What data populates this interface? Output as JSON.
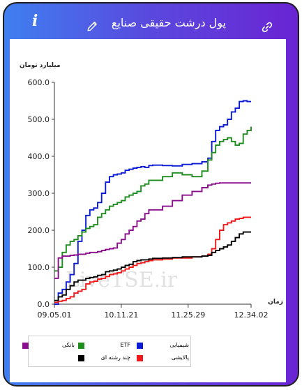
{
  "header": {
    "title": "پول درشت حقیقی صنایع",
    "info_glyph": "i",
    "icons": [
      "info-icon",
      "pencil-icon",
      "link-icon"
    ]
  },
  "colors": {
    "gradient_left": "#3f7ff0",
    "gradient_right": "#6a24d3"
  },
  "watermark": "LiveTSE.ir",
  "chart_data": {
    "type": "line",
    "title": "",
    "ylabel": "میلیارد تومان",
    "xlabel": "زمان",
    "ylim": [
      0,
      600
    ],
    "xlim": [
      0,
      100
    ],
    "y_ticks": [
      "600.0",
      "500.0",
      "400.0",
      "300.0",
      "200.0",
      "100.0",
      "0.0"
    ],
    "y_tick_values": [
      600,
      500,
      400,
      300,
      200,
      100,
      0
    ],
    "x_ticks": [
      {
        "label": "09.05.01",
        "x": 0
      },
      {
        "label": "10.11.21",
        "x": 34
      },
      {
        "label": "11.25.29",
        "x": 68
      },
      {
        "label": "12.34.02",
        "x": 100
      }
    ],
    "grid": false,
    "legend_position": "bottom-left",
    "series": [
      {
        "name": "شیمیایی",
        "color": "#0a1ad6",
        "x": [
          0,
          2,
          4,
          6,
          8,
          10,
          12,
          14,
          16,
          18,
          20,
          22,
          24,
          26,
          28,
          30,
          32,
          34,
          36,
          38,
          40,
          42,
          44,
          46,
          48,
          50,
          55,
          60,
          65,
          70,
          75,
          78,
          80,
          82,
          84,
          86,
          88,
          90,
          92,
          94,
          96,
          98,
          100
        ],
        "y": [
          0,
          30,
          40,
          60,
          80,
          110,
          170,
          200,
          240,
          255,
          260,
          275,
          300,
          330,
          345,
          350,
          352,
          355,
          362,
          365,
          368,
          370,
          372,
          370,
          375,
          376,
          375,
          374,
          378,
          380,
          385,
          395,
          440,
          470,
          480,
          485,
          500,
          520,
          530,
          548,
          550,
          548,
          548
        ]
      },
      {
        "name": "ETF",
        "color": "#1e8c1e",
        "x": [
          0,
          2,
          4,
          6,
          8,
          10,
          12,
          14,
          16,
          18,
          20,
          22,
          24,
          26,
          28,
          30,
          32,
          34,
          36,
          38,
          40,
          42,
          44,
          46,
          48,
          50,
          55,
          60,
          65,
          70,
          75,
          78,
          80,
          82,
          84,
          86,
          88,
          90,
          92,
          94,
          96,
          98,
          100
        ],
        "y": [
          90,
          100,
          140,
          160,
          170,
          175,
          185,
          195,
          205,
          210,
          215,
          235,
          245,
          255,
          265,
          270,
          275,
          280,
          290,
          295,
          300,
          305,
          320,
          325,
          335,
          335,
          345,
          355,
          350,
          345,
          360,
          390,
          410,
          430,
          440,
          445,
          450,
          440,
          430,
          435,
          460,
          470,
          480
        ]
      },
      {
        "name": "بانکی",
        "color": "#8a0d8c",
        "x": [
          0,
          2,
          4,
          6,
          8,
          10,
          12,
          14,
          16,
          18,
          20,
          22,
          24,
          26,
          28,
          30,
          32,
          34,
          36,
          38,
          40,
          42,
          44,
          46,
          48,
          50,
          55,
          60,
          65,
          70,
          75,
          78,
          80,
          82,
          84,
          86,
          88,
          90,
          92,
          94,
          96,
          98,
          100
        ],
        "y": [
          70,
          125,
          130,
          130,
          132,
          133,
          135,
          135,
          138,
          140,
          140,
          142,
          145,
          148,
          150,
          152,
          165,
          175,
          190,
          200,
          210,
          225,
          230,
          245,
          255,
          255,
          265,
          280,
          295,
          305,
          315,
          322,
          325,
          327,
          328,
          328,
          328,
          328,
          328,
          328,
          328,
          328,
          328
        ]
      },
      {
        "name": "پالایشی",
        "color": "#f01818",
        "x": [
          0,
          2,
          4,
          6,
          8,
          10,
          12,
          14,
          16,
          18,
          20,
          22,
          24,
          26,
          28,
          30,
          32,
          34,
          36,
          38,
          40,
          42,
          44,
          46,
          48,
          50,
          55,
          60,
          65,
          70,
          75,
          78,
          80,
          82,
          84,
          86,
          88,
          90,
          92,
          94,
          96,
          98,
          100
        ],
        "y": [
          5,
          8,
          10,
          15,
          20,
          30,
          35,
          40,
          55,
          60,
          62,
          68,
          70,
          75,
          80,
          82,
          85,
          90,
          95,
          100,
          105,
          110,
          112,
          115,
          118,
          120,
          122,
          125,
          125,
          128,
          130,
          135,
          150,
          175,
          200,
          215,
          220,
          225,
          230,
          232,
          235,
          235,
          235
        ]
      },
      {
        "name": "چند رشته ای",
        "color": "#000000",
        "x": [
          0,
          2,
          4,
          6,
          8,
          10,
          12,
          14,
          16,
          18,
          20,
          22,
          24,
          26,
          28,
          30,
          32,
          34,
          36,
          38,
          40,
          42,
          44,
          46,
          48,
          50,
          55,
          60,
          65,
          70,
          75,
          78,
          80,
          82,
          84,
          86,
          88,
          90,
          92,
          94,
          96,
          98,
          100
        ],
        "y": [
          10,
          20,
          25,
          40,
          50,
          60,
          65,
          65,
          70,
          72,
          74,
          78,
          80,
          88,
          90,
          92,
          95,
          100,
          105,
          108,
          115,
          118,
          120,
          120,
          122,
          124,
          125,
          126,
          128,
          128,
          130,
          132,
          140,
          145,
          150,
          155,
          160,
          170,
          180,
          190,
          195,
          195,
          195
        ]
      }
    ],
    "legend": [
      {
        "label": "شیمیایی",
        "color": "#0a1ad6"
      },
      {
        "label": "ETF",
        "color": "#1e8c1e"
      },
      {
        "label": "بانکی",
        "color": "#8a0d8c"
      },
      {
        "label": "پالایشی",
        "color": "#f01818"
      },
      {
        "label": "چند رشته ای",
        "color": "#000000"
      }
    ]
  }
}
